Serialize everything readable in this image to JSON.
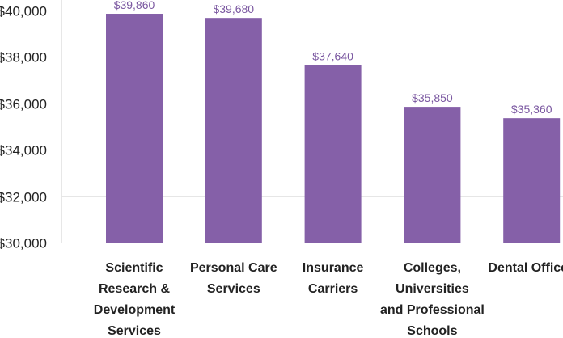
{
  "chart_data": {
    "type": "bar",
    "categories": [
      [
        "Scientific",
        "Research &",
        "Development",
        "Services"
      ],
      [
        "Personal Care",
        "Services"
      ],
      [
        "Insurance",
        "Carriers"
      ],
      [
        "Colleges,",
        "Universities",
        "and Professional",
        "Schools"
      ],
      [
        "Dental Offices"
      ]
    ],
    "values": [
      39860,
      39680,
      37640,
      35850,
      35360
    ],
    "value_labels": [
      "$39,860",
      "$39,680",
      "$37,640",
      "$35,850",
      "$35,360"
    ],
    "yticks": [
      30000,
      32000,
      34000,
      36000,
      38000,
      40000
    ],
    "ytick_labels": [
      "$30,000",
      "$32,000",
      "$34,000",
      "$36,000",
      "$38,000",
      "$40,000"
    ],
    "ylim": [
      30000,
      40000
    ],
    "grid": true,
    "title": "",
    "xlabel": "",
    "ylabel": ""
  },
  "colors": {
    "bar": "#8560a8",
    "label": "#7a57a0",
    "grid": "#e6e6e6",
    "axis": "#cfcfcf"
  }
}
